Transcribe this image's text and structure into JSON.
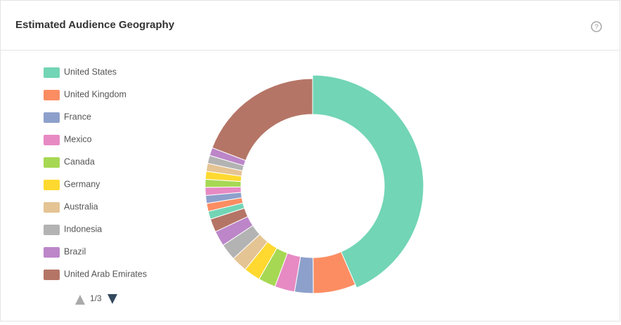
{
  "header": {
    "title": "Estimated Audience Geography"
  },
  "chart_data": {
    "type": "donut",
    "categories": [
      "United States",
      "United Kingdom",
      "France",
      "Mexico",
      "Canada",
      "Germany",
      "Australia",
      "Indonesia",
      "Brazil",
      "United Arab Emirates",
      null,
      null,
      null,
      null,
      null,
      null,
      null,
      null,
      null,
      null
    ],
    "values": [
      43.5,
      6.4,
      2.8,
      3.0,
      2.6,
      2.5,
      2.4,
      2.5,
      2.3,
      2.0,
      1.2,
      1.2,
      1.2,
      1.2,
      1.2,
      1.2,
      1.2,
      1.2,
      1.2,
      19.2
    ],
    "colors": [
      "#72d5b5",
      "#fc8d62",
      "#8da0cb",
      "#e78ac3",
      "#a6d854",
      "#ffd92f",
      "#e5c494",
      "#b3b3b3",
      "#bc86c9",
      "#b57566",
      "#72d5b5",
      "#fc8d62",
      "#8da0cb",
      "#e78ac3",
      "#a6d854",
      "#ffd92f",
      "#e5c494",
      "#b3b3b3",
      "#bc86c9",
      "#b57566"
    ],
    "pager": "1/3"
  }
}
